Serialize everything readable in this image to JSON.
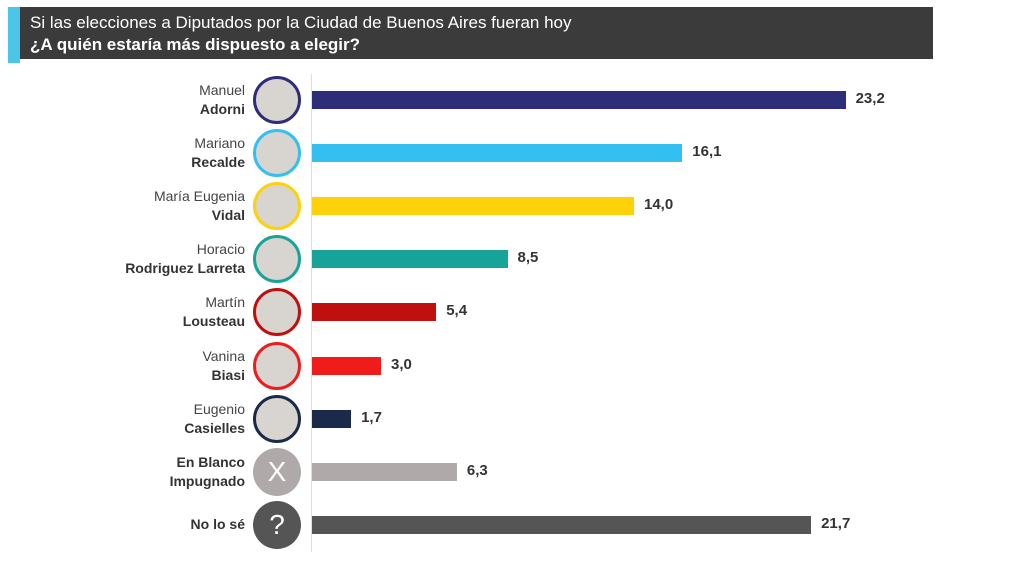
{
  "header": {
    "line1": "Si las elecciones a Diputados por la Ciudad de Buenos Aires fueran hoy",
    "line2": "¿A quién estaría más dispuesto a elegir?"
  },
  "chart_data": {
    "type": "bar",
    "orientation": "horizontal",
    "title": "Si las elecciones a Diputados por la Ciudad de Buenos Aires fueran hoy — ¿A quién estaría más dispuesto a elegir?",
    "categories": [
      {
        "first": "Manuel",
        "last": "Adorni"
      },
      {
        "first": "Mariano",
        "last": "Recalde"
      },
      {
        "first": "María Eugenia",
        "last": "Vidal"
      },
      {
        "first": "Horacio",
        "last": "Rodriguez Larreta"
      },
      {
        "first": "Martín",
        "last": "Lousteau"
      },
      {
        "first": "Vanina",
        "last": "Biasi"
      },
      {
        "first": "Eugenio",
        "last": "Casielles"
      },
      {
        "first": "",
        "last": "En Blanco Impugnado",
        "icon": "X"
      },
      {
        "first": "",
        "last": "No lo sé",
        "icon": "?"
      }
    ],
    "values": [
      23.2,
      16.1,
      14.0,
      8.5,
      5.4,
      3.0,
      1.7,
      6.3,
      21.7
    ],
    "value_labels": [
      "23,2",
      "16,1",
      "14,0",
      "8,5",
      "5,4",
      "3,0",
      "1,7",
      "6,3",
      "21,7"
    ],
    "colors": [
      "#2e2d7a",
      "#33bff0",
      "#fdd20a",
      "#17a398",
      "#c00f0f",
      "#f01c1c",
      "#1b2a48",
      "#b0a9aa",
      "#555555"
    ],
    "xlim": [
      0,
      25
    ]
  }
}
